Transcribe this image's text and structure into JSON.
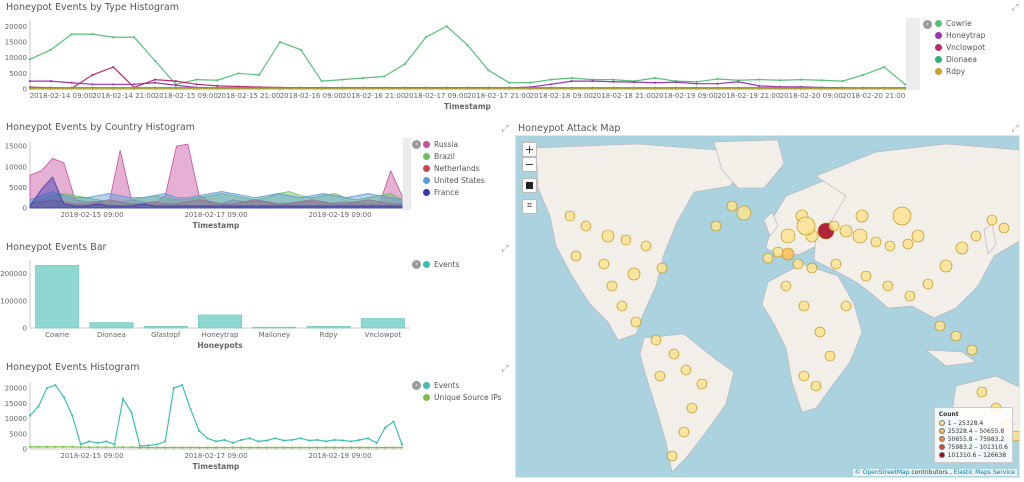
{
  "panels": {
    "type_hist": {
      "title": "Honeypot Events by Type Histogram",
      "xlabel": "Timestamp",
      "yticks": [
        "20000",
        "15000",
        "10000",
        "5000",
        "0"
      ],
      "xticks": [
        "2018-02-14 09:00",
        "2018-02-14 21:00",
        "2018-02-15 09:00",
        "2018-02-15 21:00",
        "2018-02-16 09:00",
        "2018-02-16 21:00",
        "2018-02-17 09:00",
        "2018-02-17 21:00",
        "2018-02-18 09:00",
        "2018-02-18 21:00",
        "2018-02-19 09:00",
        "2018-02-19 21:00",
        "2018-02-20 09:00",
        "2018-02-20 21:00"
      ],
      "legend": [
        {
          "label": "Cowrie",
          "color": "#57c17b"
        },
        {
          "label": "Honeytrap",
          "color": "#9b35b0"
        },
        {
          "label": "Vnclowpot",
          "color": "#bc2a6e"
        },
        {
          "label": "Dionaea",
          "color": "#29b27a"
        },
        {
          "label": "Rdpy",
          "color": "#c9a227"
        }
      ]
    },
    "country_hist": {
      "title": "Honeypot Events by Country Histogram",
      "xlabel": "Timestamp",
      "yticks": [
        "15000",
        "10000",
        "5000",
        "0"
      ],
      "xticks": [
        "2018-02-15 09:00",
        "2018-02-17 09:00",
        "2018-02-19 09:00"
      ],
      "legend": [
        {
          "label": "Russia",
          "color": "#c74f9f"
        },
        {
          "label": "Brazil",
          "color": "#6abf5e"
        },
        {
          "label": "Netherlands",
          "color": "#c24a4a"
        },
        {
          "label": "United States",
          "color": "#5a9bd5"
        },
        {
          "label": "France",
          "color": "#3a3ab0"
        }
      ]
    },
    "bar": {
      "title": "Honeypot Events Bar",
      "xlabel": "Honeypots",
      "yticks": [
        "200000",
        "100000",
        "0"
      ],
      "legend": [
        {
          "label": "Events",
          "color": "#3cc0b4"
        }
      ]
    },
    "events_hist": {
      "title": "Honeypot Events Histogram",
      "xlabel": "Timestamp",
      "yticks": [
        "20000",
        "15000",
        "10000",
        "5000",
        "0"
      ],
      "xticks": [
        "2018-02-15 09:00",
        "2018-02-17 09:00",
        "2018-02-19 09:00"
      ],
      "legend": [
        {
          "label": "Events",
          "color": "#3cc0b4"
        },
        {
          "label": "Unique Source IPs",
          "color": "#7fc241"
        }
      ]
    },
    "map": {
      "title": "Honeypot Attack Map",
      "controls": {
        "zoom_in": "+",
        "zoom_out": "−"
      },
      "legend_title": "Count",
      "legend": [
        {
          "label": "1 – 25328.4",
          "color": "#fde391"
        },
        {
          "label": "25328.4 – 50655.8",
          "color": "#fdbe56"
        },
        {
          "label": "50655.8 – 75983.2",
          "color": "#f78c3b"
        },
        {
          "label": "75983.2 – 101310.6",
          "color": "#e0452c"
        },
        {
          "label": "101310.6 – 126638",
          "color": "#a5001f"
        }
      ],
      "attribution": {
        "link1": "© OpenStreetMap",
        "text": " contributors , ",
        "link2": "Elastic Maps Service"
      }
    }
  },
  "chart_data": [
    {
      "type": "line",
      "title": "Honeypot Events by Type Histogram",
      "xlabel": "Timestamp",
      "ylim": [
        0,
        22000
      ],
      "series": [
        {
          "name": "Cowrie",
          "values": [
            9500,
            12500,
            17500,
            17500,
            16500,
            16500,
            9000,
            1500,
            3000,
            2800,
            5000,
            4500,
            15000,
            12500,
            2500,
            3000,
            3500,
            4000,
            8000,
            16500,
            20000,
            14000,
            6000,
            2000,
            2000,
            3000,
            3500,
            3000,
            3000,
            2500,
            3500,
            2500,
            2300,
            3200,
            2800,
            3000,
            2800,
            3000,
            2800,
            2500,
            4500,
            7000,
            1500
          ]
        },
        {
          "name": "Honeytrap",
          "values": [
            2500,
            2500,
            2000,
            1500,
            1500,
            1500,
            2000,
            1200,
            500,
            300,
            200,
            200,
            200,
            200,
            200,
            200,
            200,
            200,
            200,
            200,
            200,
            200,
            200,
            400,
            600,
            1500,
            2500,
            2500,
            2300,
            2200,
            2000,
            2200,
            1700,
            1700,
            2300,
            1000,
            700,
            700,
            500,
            400,
            200,
            200,
            200
          ]
        },
        {
          "name": "Vnclowpot",
          "values": [
            600,
            400,
            200,
            4500,
            7000,
            500,
            3000,
            2500,
            1500,
            1000,
            800,
            600,
            500,
            400,
            400,
            400,
            400,
            400,
            400,
            400,
            400,
            400,
            400,
            300,
            300,
            300,
            300,
            300,
            300,
            300,
            300,
            300,
            300,
            300,
            300,
            300,
            300,
            300,
            300,
            300,
            300,
            300,
            300
          ]
        },
        {
          "name": "Dionaea",
          "values": [
            400,
            400,
            400,
            400,
            400,
            400,
            400,
            400,
            400,
            400,
            400,
            400,
            400,
            400,
            400,
            400,
            400,
            400,
            400,
            400,
            400,
            400,
            400,
            400,
            400,
            400,
            400,
            400,
            400,
            400,
            400,
            400,
            400,
            400,
            400,
            400,
            400,
            400,
            400,
            400,
            400,
            400,
            400
          ]
        },
        {
          "name": "Rdpy",
          "values": [
            50,
            50,
            50,
            50,
            50,
            50,
            50,
            50,
            50,
            50,
            50,
            50,
            50,
            50,
            50,
            50,
            50,
            50,
            50,
            50,
            50,
            50,
            50,
            50,
            50,
            50,
            50,
            50,
            50,
            50,
            50,
            50,
            50,
            50,
            50,
            50,
            50,
            50,
            50,
            50,
            50,
            50,
            50
          ]
        }
      ]
    },
    {
      "type": "area",
      "title": "Honeypot Events by Country Histogram",
      "xlabel": "Timestamp",
      "ylim": [
        0,
        16000
      ],
      "series": [
        {
          "name": "Russia",
          "values": [
            8000,
            9000,
            12000,
            11000,
            2000,
            1500,
            1500,
            1000,
            14000,
            2000,
            1500,
            1000,
            3000,
            15000,
            15500,
            3000,
            1500,
            1000,
            2000,
            1500,
            1500,
            1500,
            1000,
            1200,
            1500,
            1500,
            1000,
            1200,
            1500,
            1200,
            1000,
            1000,
            9000,
            3000
          ]
        },
        {
          "name": "Brazil",
          "values": [
            1500,
            2000,
            3000,
            3500,
            3000,
            2500,
            2000,
            1500,
            1500,
            2000,
            2500,
            3000,
            2500,
            2000,
            2000,
            2500,
            3000,
            3500,
            3000,
            2500,
            2000,
            2500,
            3500,
            4000,
            3000,
            2500,
            3000,
            3500,
            2500,
            2000,
            2500,
            3000,
            3500,
            2000
          ]
        },
        {
          "name": "Netherlands",
          "values": [
            1000,
            1500,
            2000,
            1500,
            1000,
            1000,
            1500,
            2000,
            1500,
            1000,
            1000,
            1500,
            1000,
            1000,
            1500,
            2000,
            1500,
            1000,
            1000,
            1500,
            2000,
            1500,
            1000,
            1000,
            1500,
            2000,
            1500,
            1000,
            1000,
            1500,
            2000,
            1500,
            1000,
            1000
          ]
        },
        {
          "name": "United States",
          "values": [
            2000,
            3000,
            4000,
            3000,
            2500,
            2500,
            3000,
            3500,
            3000,
            2500,
            2500,
            3000,
            3500,
            2500,
            2500,
            3000,
            3500,
            4000,
            3500,
            3000,
            2500,
            3000,
            3500,
            3000,
            2500,
            3000,
            3500,
            3000,
            2500,
            3000,
            3500,
            3000,
            2500,
            2000
          ]
        },
        {
          "name": "France",
          "values": [
            500,
            4500,
            7500,
            1000,
            500,
            500,
            1000,
            500,
            500,
            500,
            1000,
            500,
            500,
            500,
            500,
            500,
            500,
            500,
            500,
            500,
            500,
            500,
            500,
            500,
            500,
            500,
            500,
            500,
            500,
            500,
            500,
            500,
            500,
            500
          ]
        }
      ]
    },
    {
      "type": "bar",
      "title": "Honeypot Events Bar",
      "xlabel": "Honeypots",
      "ylim": [
        0,
        250000
      ],
      "categories": [
        "Cowrie",
        "Dionaea",
        "Glastopf",
        "Honeytrap",
        "Mailoney",
        "Rdpy",
        "Vnclowpot"
      ],
      "series": [
        {
          "name": "Events",
          "values": [
            230000,
            20000,
            6000,
            48000,
            3000,
            6000,
            35000
          ]
        }
      ]
    },
    {
      "type": "line",
      "title": "Honeypot Events Histogram",
      "xlabel": "Timestamp",
      "ylim": [
        0,
        22000
      ],
      "series": [
        {
          "name": "Events",
          "values": [
            11000,
            14000,
            20000,
            21000,
            17000,
            11000,
            1500,
            2500,
            2000,
            2500,
            1500,
            16500,
            12000,
            1000,
            1200,
            1500,
            2500,
            20000,
            21000,
            13000,
            6000,
            3500,
            2500,
            3000,
            2000,
            3000,
            3500,
            2500,
            2800,
            3500,
            2800,
            3000,
            3500,
            2800,
            3000,
            2500,
            3000,
            2800,
            2500,
            3000,
            3500,
            2000,
            7000,
            9000,
            1500
          ]
        },
        {
          "name": "Unique Source IPs",
          "values": [
            700,
            700,
            700,
            700,
            700,
            700,
            600,
            600,
            600,
            600,
            600,
            600,
            600,
            500,
            500,
            500,
            500,
            500,
            500,
            500,
            500,
            500,
            500,
            500,
            500,
            500,
            500,
            500,
            500,
            500,
            500,
            500,
            500,
            500,
            500,
            500,
            500,
            500,
            500,
            500,
            500,
            500,
            500,
            500,
            500
          ]
        }
      ]
    }
  ]
}
